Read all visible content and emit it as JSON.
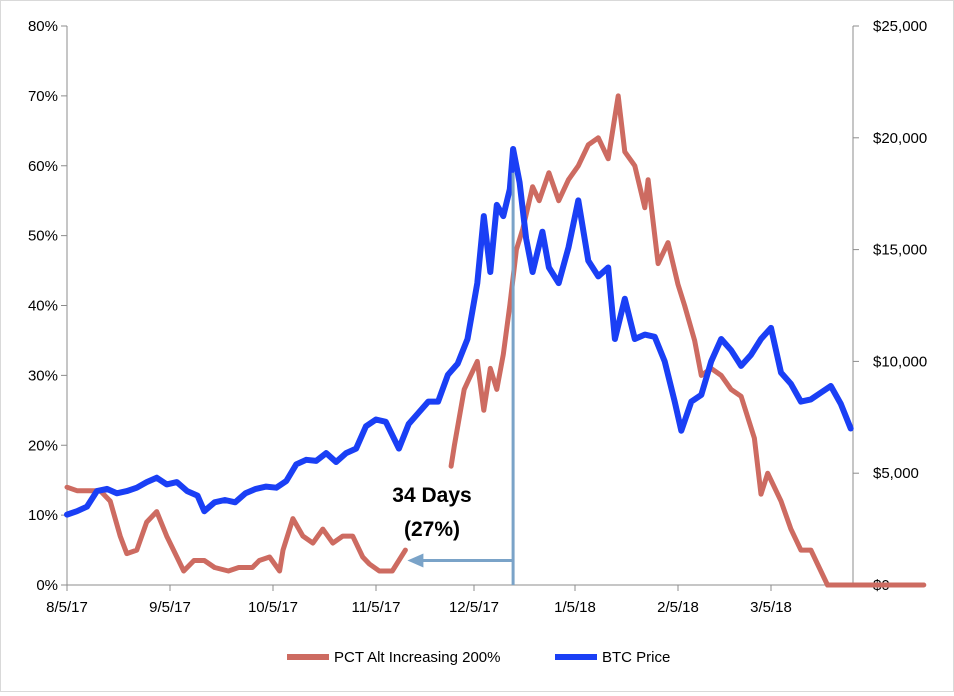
{
  "chart_data": {
    "type": "line",
    "x_ticks": [
      "8/5/17",
      "9/5/17",
      "10/5/17",
      "11/5/17",
      "12/5/17",
      "1/5/18",
      "2/5/18",
      "3/5/18"
    ],
    "y_left": {
      "ticks": [
        "0%",
        "10%",
        "20%",
        "30%",
        "40%",
        "50%",
        "60%",
        "70%",
        "80%"
      ],
      "range": [
        0,
        80
      ],
      "unit": "%"
    },
    "y_right": {
      "ticks": [
        "$0",
        "$5,000",
        "$10,000",
        "$15,000",
        "$20,000",
        "$25,000"
      ],
      "range": [
        0,
        25000
      ],
      "unit": "$"
    },
    "grid": false,
    "legend_position": "bottom",
    "series": [
      {
        "name": "PCT Alt Increasing 200%",
        "axis": "left",
        "color": "#cd6b61",
        "points": [
          [
            "2017-08-05",
            14
          ],
          [
            "2017-08-08",
            13.5
          ],
          [
            "2017-08-15",
            13.5
          ],
          [
            "2017-08-18",
            12
          ],
          [
            "2017-08-21",
            7
          ],
          [
            "2017-08-23",
            4.5
          ],
          [
            "2017-08-26",
            5
          ],
          [
            "2017-08-29",
            9
          ],
          [
            "2017-09-01",
            10.5
          ],
          [
            "2017-09-04",
            7
          ],
          [
            "2017-09-07",
            4
          ],
          [
            "2017-09-09",
            2
          ],
          [
            "2017-09-12",
            3.5
          ],
          [
            "2017-09-15",
            3.5
          ],
          [
            "2017-09-18",
            2.5
          ],
          [
            "2017-09-22",
            2
          ],
          [
            "2017-09-25",
            2.5
          ],
          [
            "2017-09-29",
            2.5
          ],
          [
            "2017-10-01",
            3.5
          ],
          [
            "2017-10-04",
            4
          ],
          [
            "2017-10-07",
            2
          ],
          [
            "2017-10-08",
            5
          ],
          [
            "2017-10-11",
            9.5
          ],
          [
            "2017-10-14",
            7
          ],
          [
            "2017-10-17",
            6
          ],
          [
            "2017-10-20",
            8
          ],
          [
            "2017-10-23",
            6
          ],
          [
            "2017-10-26",
            7
          ],
          [
            "2017-10-29",
            7
          ],
          [
            "2017-11-01",
            4
          ],
          [
            "2017-11-03",
            3
          ],
          [
            "2017-11-06",
            2
          ],
          [
            "2017-11-10",
            2
          ],
          [
            "2017-11-14",
            5
          ],
          null,
          [
            "2017-11-28",
            17
          ],
          [
            "2017-11-29",
            20
          ],
          [
            "2017-12-02",
            28
          ],
          [
            "2017-12-04",
            30
          ],
          [
            "2017-12-06",
            32
          ],
          [
            "2017-12-08",
            25
          ],
          [
            "2017-12-10",
            31
          ],
          [
            "2017-12-12",
            28
          ],
          [
            "2017-12-14",
            33
          ],
          [
            "2017-12-16",
            40
          ],
          [
            "2017-12-18",
            48
          ],
          [
            "2017-12-20",
            51
          ],
          [
            "2017-12-23",
            57
          ],
          [
            "2017-12-25",
            55
          ],
          [
            "2017-12-28",
            59
          ],
          [
            "2017-12-31",
            55
          ],
          [
            "2018-01-03",
            58
          ],
          [
            "2018-01-06",
            60
          ],
          [
            "2018-01-09",
            63
          ],
          [
            "2018-01-12",
            64
          ],
          [
            "2018-01-15",
            61
          ],
          [
            "2018-01-18",
            70
          ],
          [
            "2018-01-20",
            62
          ],
          [
            "2018-01-23",
            60
          ],
          [
            "2018-01-26",
            54
          ],
          [
            "2018-01-27",
            58
          ],
          [
            "2018-01-30",
            46
          ],
          [
            "2018-02-02",
            49
          ],
          [
            "2018-02-05",
            43
          ],
          [
            "2018-02-07",
            40
          ],
          [
            "2018-02-10",
            35
          ],
          [
            "2018-02-12",
            30
          ],
          [
            "2018-02-15",
            31
          ],
          [
            "2018-02-18",
            30
          ],
          [
            "2018-02-21",
            28
          ],
          [
            "2018-02-24",
            27
          ],
          [
            "2018-02-28",
            21
          ],
          [
            "2018-03-02",
            13
          ],
          [
            "2018-03-04",
            16
          ],
          [
            "2018-03-08",
            12
          ],
          [
            "2018-03-11",
            8
          ],
          [
            "2018-03-14",
            5
          ],
          [
            "2018-03-17",
            5
          ],
          [
            "2018-03-19",
            3
          ],
          [
            "2018-03-22",
            0
          ],
          [
            "2018-04-20",
            0
          ]
        ]
      },
      {
        "name": "BTC Price",
        "axis": "right",
        "color": "#1a3ff5",
        "points": [
          [
            "2017-08-05",
            3150
          ],
          [
            "2017-08-08",
            3300
          ],
          [
            "2017-08-11",
            3500
          ],
          [
            "2017-08-14",
            4200
          ],
          [
            "2017-08-17",
            4300
          ],
          [
            "2017-08-20",
            4100
          ],
          [
            "2017-08-23",
            4200
          ],
          [
            "2017-08-26",
            4350
          ],
          [
            "2017-08-29",
            4600
          ],
          [
            "2017-09-01",
            4800
          ],
          [
            "2017-09-04",
            4500
          ],
          [
            "2017-09-07",
            4600
          ],
          [
            "2017-09-10",
            4200
          ],
          [
            "2017-09-13",
            4000
          ],
          [
            "2017-09-15",
            3300
          ],
          [
            "2017-09-18",
            3700
          ],
          [
            "2017-09-21",
            3800
          ],
          [
            "2017-09-24",
            3700
          ],
          [
            "2017-09-27",
            4100
          ],
          [
            "2017-09-30",
            4300
          ],
          [
            "2017-10-03",
            4400
          ],
          [
            "2017-10-06",
            4350
          ],
          [
            "2017-10-09",
            4650
          ],
          [
            "2017-10-12",
            5400
          ],
          [
            "2017-10-15",
            5600
          ],
          [
            "2017-10-18",
            5550
          ],
          [
            "2017-10-21",
            5900
          ],
          [
            "2017-10-24",
            5500
          ],
          [
            "2017-10-27",
            5900
          ],
          [
            "2017-10-30",
            6100
          ],
          [
            "2017-11-02",
            7100
          ],
          [
            "2017-11-05",
            7400
          ],
          [
            "2017-11-08",
            7300
          ],
          [
            "2017-11-12",
            6100
          ],
          [
            "2017-11-15",
            7200
          ],
          [
            "2017-11-18",
            7700
          ],
          [
            "2017-11-21",
            8200
          ],
          [
            "2017-11-24",
            8200
          ],
          [
            "2017-11-27",
            9400
          ],
          [
            "2017-11-30",
            9900
          ],
          [
            "2017-12-03",
            11000
          ],
          [
            "2017-12-06",
            13500
          ],
          [
            "2017-12-08",
            16500
          ],
          [
            "2017-12-10",
            14000
          ],
          [
            "2017-12-12",
            17000
          ],
          [
            "2017-12-14",
            16500
          ],
          [
            "2017-12-16",
            17700
          ],
          [
            "2017-12-17",
            19500
          ],
          [
            "2017-12-19",
            18000
          ],
          [
            "2017-12-21",
            15500
          ],
          [
            "2017-12-23",
            14000
          ],
          [
            "2017-12-26",
            15800
          ],
          [
            "2017-12-28",
            14200
          ],
          [
            "2017-12-31",
            13500
          ],
          [
            "2018-01-03",
            15100
          ],
          [
            "2018-01-06",
            17200
          ],
          [
            "2018-01-09",
            14500
          ],
          [
            "2018-01-12",
            13800
          ],
          [
            "2018-01-15",
            14200
          ],
          [
            "2018-01-17",
            11000
          ],
          [
            "2018-01-20",
            12800
          ],
          [
            "2018-01-23",
            11000
          ],
          [
            "2018-01-26",
            11200
          ],
          [
            "2018-01-29",
            11100
          ],
          [
            "2018-02-01",
            10000
          ],
          [
            "2018-02-04",
            8200
          ],
          [
            "2018-02-06",
            6900
          ],
          [
            "2018-02-09",
            8200
          ],
          [
            "2018-02-12",
            8500
          ],
          [
            "2018-02-15",
            10000
          ],
          [
            "2018-02-18",
            11000
          ],
          [
            "2018-02-21",
            10500
          ],
          [
            "2018-02-24",
            9800
          ],
          [
            "2018-02-27",
            10300
          ],
          [
            "2018-03-02",
            11000
          ],
          [
            "2018-03-05",
            11500
          ],
          [
            "2018-03-08",
            9500
          ],
          [
            "2018-03-11",
            9000
          ],
          [
            "2018-03-14",
            8200
          ],
          [
            "2018-03-17",
            8300
          ],
          [
            "2018-03-20",
            8600
          ],
          [
            "2018-03-23",
            8900
          ],
          [
            "2018-03-26",
            8100
          ],
          [
            "2018-03-29",
            7000
          ]
        ]
      }
    ],
    "annotation": {
      "lines": [
        "34 Days",
        "(27%)"
      ],
      "arrow_from": [
        "2017-12-17",
        0
      ],
      "arrow_top_value": 59,
      "arrow_to": [
        "2017-11-14",
        3.5
      ]
    }
  }
}
